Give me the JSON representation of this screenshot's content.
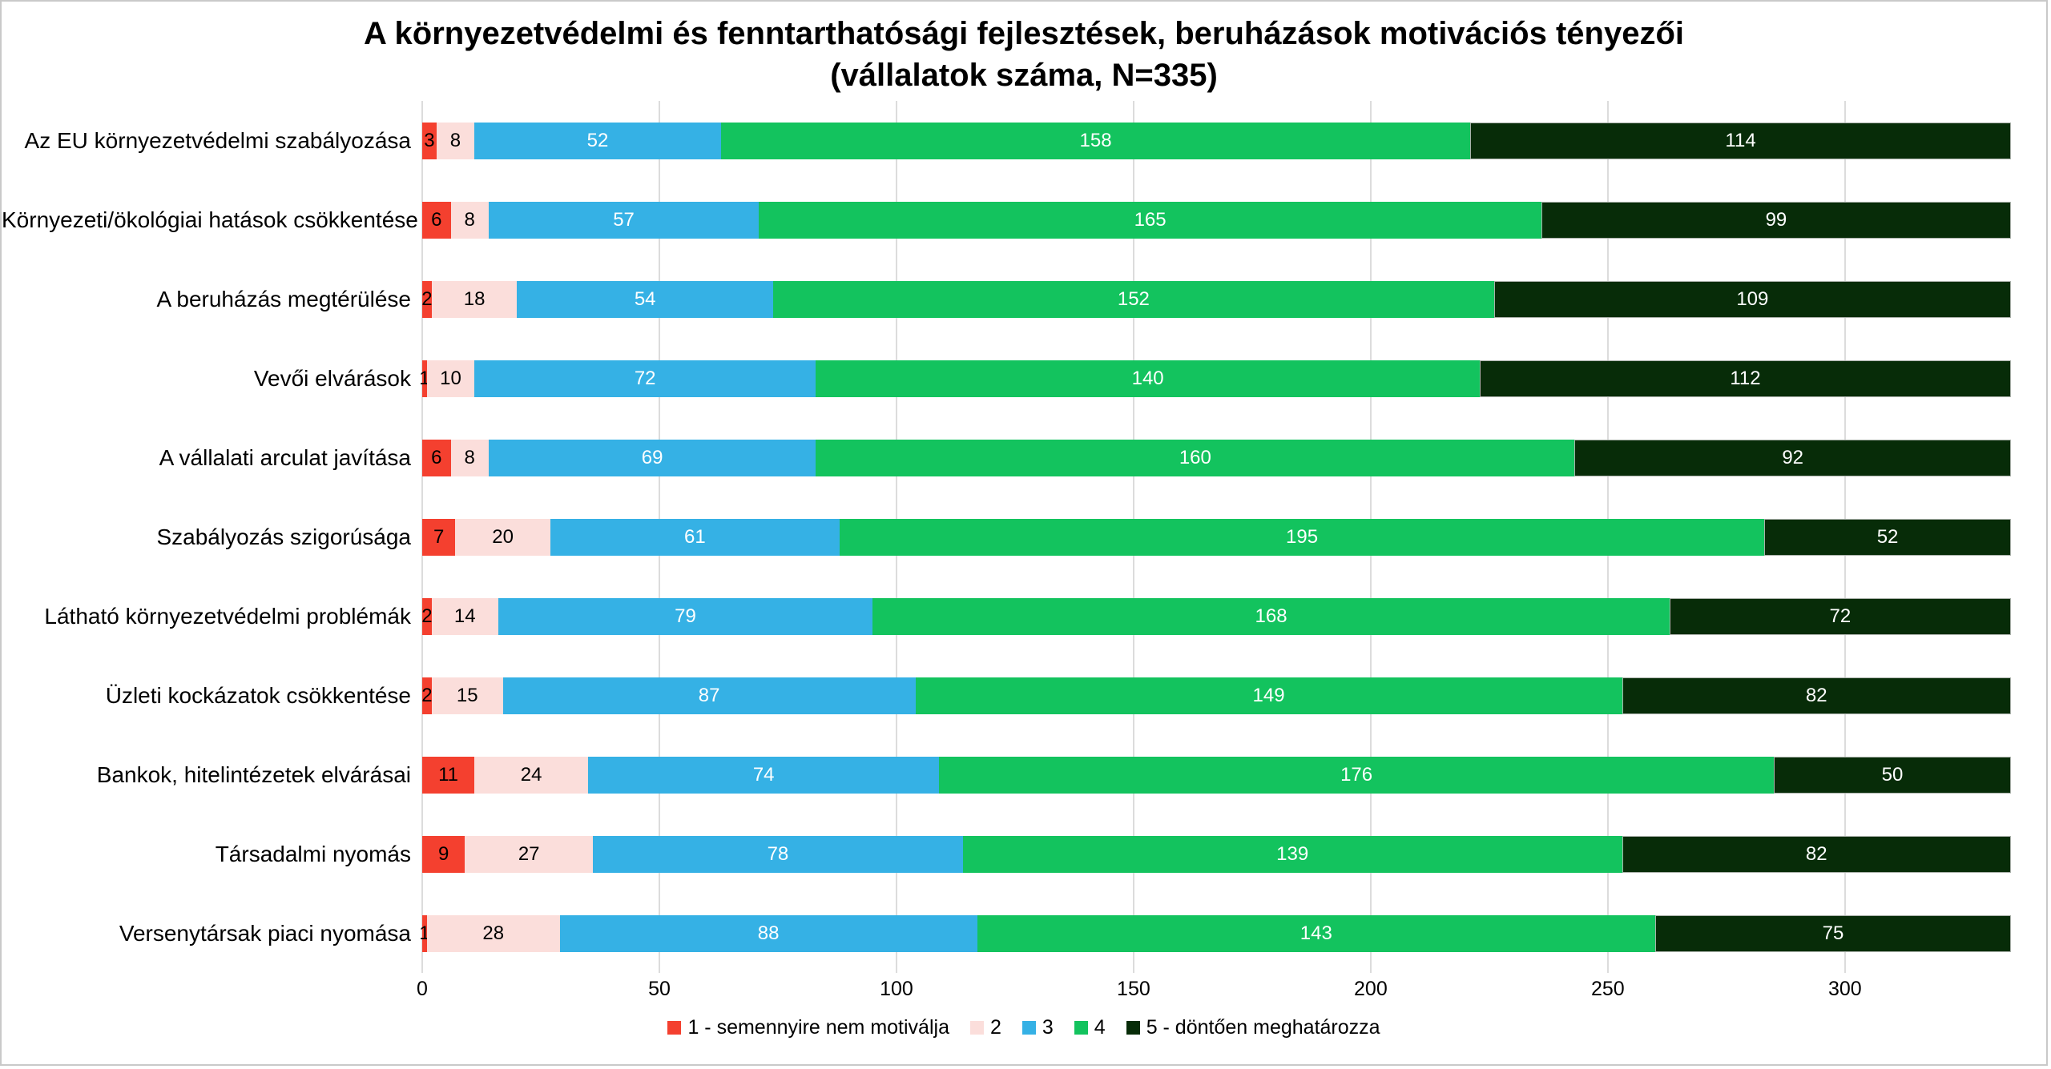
{
  "chart_data": {
    "type": "bar",
    "orientation": "horizontal",
    "stacked": true,
    "title": "A környezetvédelmi és fenntarthatósági fejlesztések, beruházások motivációs tényezői",
    "subtitle": "(vállalatok száma, N=335)",
    "categories": [
      "Az EU környezetvédelmi szabályozása",
      "Környezeti/ökológiai hatások csökkentése",
      "A beruházás megtérülése",
      "Vevői elvárások",
      "A vállalati arculat javítása",
      "Szabályozás szigorúsága",
      "Látható környezetvédelmi problémák",
      "Üzleti kockázatok csökkentése",
      "Bankok, hitelintézetek elvárásai",
      "Társadalmi nyomás",
      "Versenytársak piaci nyomása"
    ],
    "series": [
      {
        "name": "1 - semennyire nem motiválja",
        "color": "#f4402f",
        "label_color": "#000000",
        "values": [
          3,
          6,
          2,
          1,
          6,
          7,
          2,
          2,
          11,
          9,
          1
        ]
      },
      {
        "name": "2",
        "color": "#fbdedb",
        "label_color": "#000000",
        "values": [
          8,
          8,
          18,
          10,
          8,
          20,
          14,
          15,
          24,
          27,
          28
        ]
      },
      {
        "name": "3",
        "color": "#35b1e5",
        "label_color": "#ffffff",
        "values": [
          52,
          57,
          54,
          72,
          69,
          61,
          79,
          87,
          74,
          78,
          88
        ]
      },
      {
        "name": "4",
        "color": "#13c35e",
        "label_color": "#ffffff",
        "values": [
          158,
          165,
          152,
          140,
          160,
          195,
          168,
          149,
          176,
          139,
          143
        ]
      },
      {
        "name": "5 - döntően meghatározza",
        "color": "#072c08",
        "label_color": "#ffffff",
        "values": [
          114,
          99,
          109,
          112,
          92,
          52,
          72,
          82,
          50,
          82,
          75
        ]
      }
    ],
    "xlim": [
      0,
      335
    ],
    "x_ticks": [
      0,
      50,
      100,
      150,
      200,
      250,
      300
    ],
    "grid": true,
    "legend_position": "bottom",
    "total_per_row": 335
  }
}
